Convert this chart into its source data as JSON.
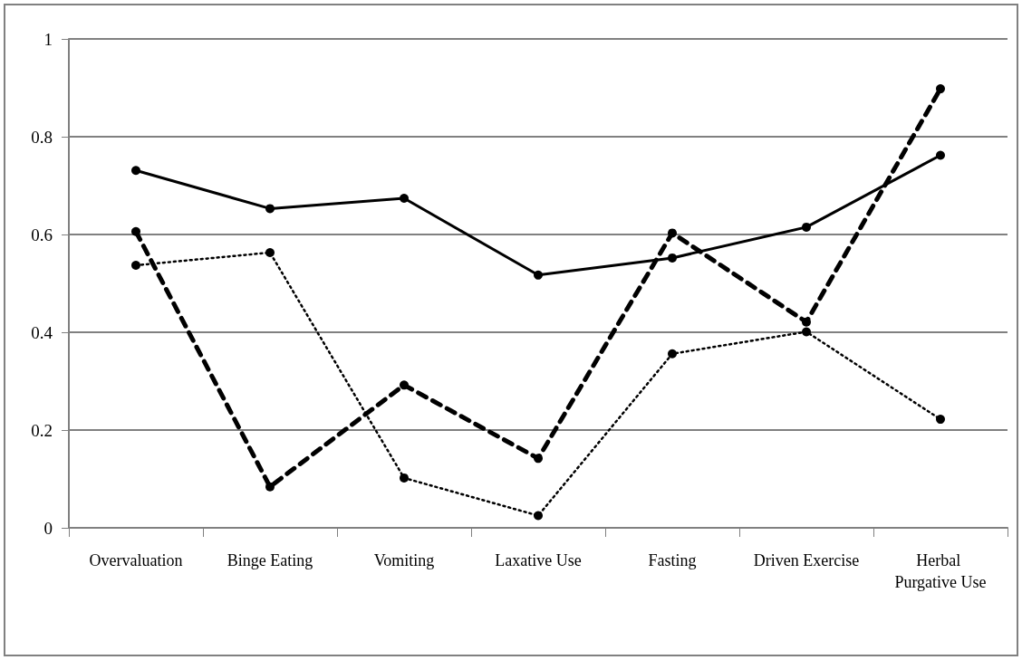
{
  "chart_data": {
    "type": "line",
    "categories": [
      "Overvaluation",
      "Binge Eating",
      "Vomiting",
      "Laxative Use",
      "Fasting",
      "Driven Exercise",
      "Herbal Purgative Use"
    ],
    "series": [
      {
        "color": "#000000",
        "line_style": "solid",
        "values": [
          0.731,
          0.653,
          0.674,
          0.517,
          0.552,
          0.615,
          0.762
        ]
      },
      {
        "color": "#000000",
        "line_style": "dashed",
        "values": [
          0.606,
          0.084,
          0.292,
          0.142,
          0.603,
          0.421,
          0.898
        ]
      },
      {
        "color": "#000000",
        "line_style": "dotted",
        "values": [
          0.537,
          0.563,
          0.102,
          0.025,
          0.356,
          0.401,
          0.222
        ]
      }
    ],
    "ylim": [
      0,
      1
    ],
    "yticks": [
      0,
      0.2,
      0.4,
      0.6,
      0.8,
      1
    ],
    "grid": "y",
    "marker": "circle"
  }
}
